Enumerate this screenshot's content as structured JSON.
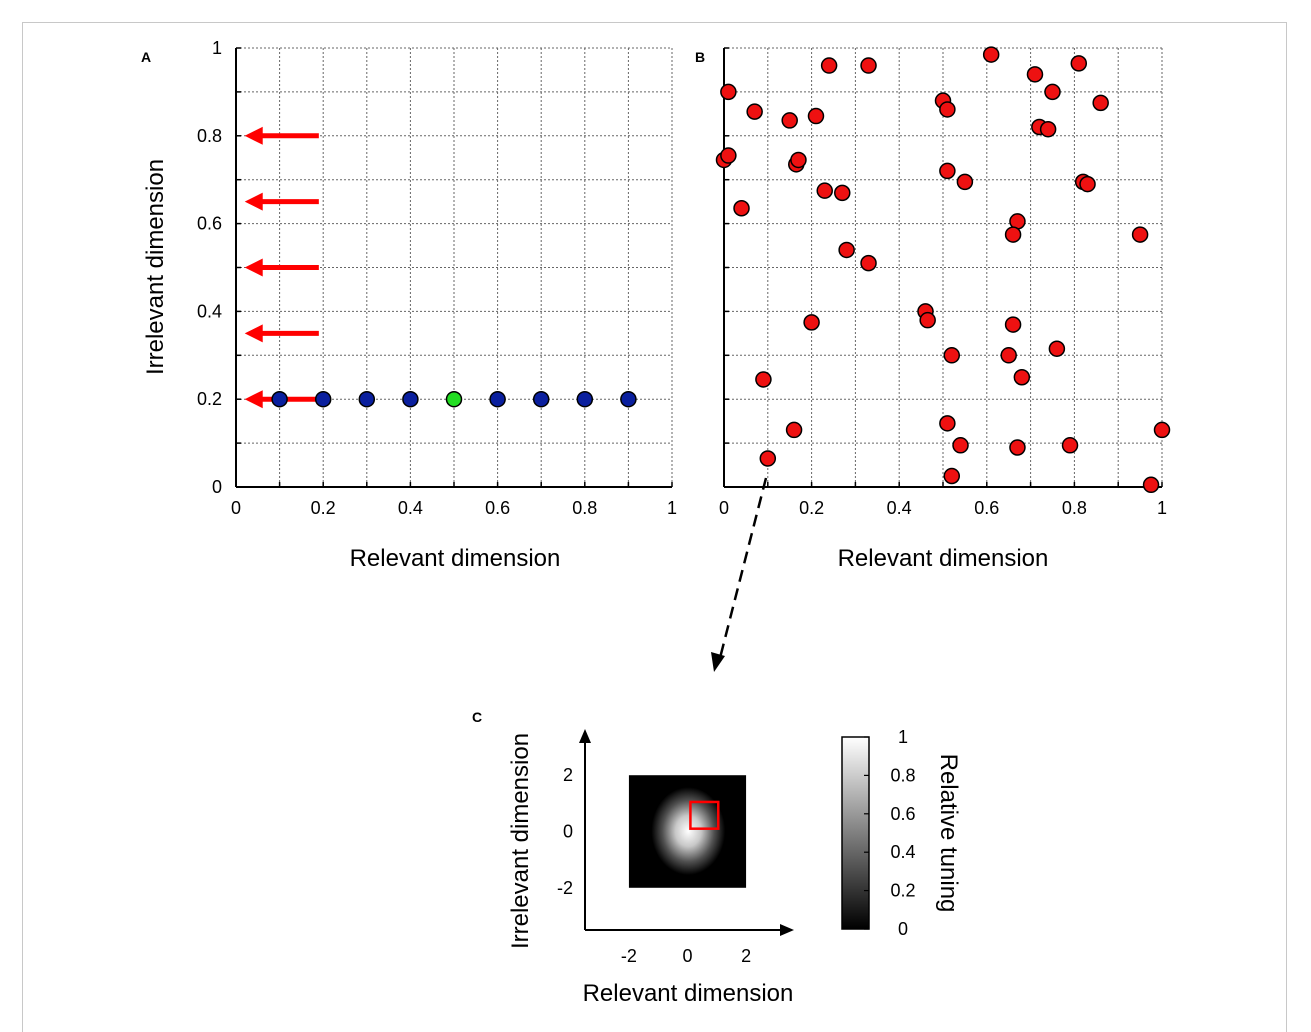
{
  "panels": [
    {
      "id": "A",
      "label": "A"
    },
    {
      "id": "B",
      "label": "B"
    },
    {
      "id": "C",
      "label": "C"
    }
  ],
  "chart_data": [
    {
      "type": "scatter",
      "panel": "A",
      "xlabel": "Relevant dimension",
      "ylabel": "Irrelevant dimension",
      "xlim": [
        0,
        1
      ],
      "ylim": [
        0,
        1
      ],
      "xticks": [
        "0",
        "0.2",
        "0.4",
        "0.6",
        "0.8",
        "1"
      ],
      "yticks": [
        "0",
        "0.2",
        "0.4",
        "0.6",
        "0.8",
        "1"
      ],
      "grid": true,
      "series": [
        {
          "color": "#0a1f9e",
          "points": [
            [
              0.1,
              0.2
            ],
            [
              0.2,
              0.2
            ],
            [
              0.3,
              0.2
            ],
            [
              0.4,
              0.2
            ],
            [
              0.6,
              0.2
            ],
            [
              0.7,
              0.2
            ],
            [
              0.8,
              0.2
            ],
            [
              0.9,
              0.2
            ]
          ]
        },
        {
          "color": "#22dd22",
          "points": [
            [
              0.5,
              0.2
            ]
          ]
        }
      ],
      "arrows": {
        "color": "#ff0000",
        "from_x": 0.19,
        "to_x": 0.02,
        "y": [
          0.8,
          0.65,
          0.5,
          0.35,
          0.2
        ]
      }
    },
    {
      "type": "scatter",
      "panel": "B",
      "xlabel": "Relevant dimension",
      "ylabel": "",
      "xlim": [
        0,
        1
      ],
      "ylim": [
        0,
        1
      ],
      "xticks": [
        "0",
        "0.2",
        "0.4",
        "0.6",
        "0.8",
        "1"
      ],
      "grid": true,
      "series": [
        {
          "color": "#ee1111",
          "points": [
            [
              0.61,
              0.985
            ],
            [
              0.24,
              0.96
            ],
            [
              0.33,
              0.96
            ],
            [
              0.81,
              0.965
            ],
            [
              0.71,
              0.94
            ],
            [
              0.01,
              0.9
            ],
            [
              0.75,
              0.9
            ],
            [
              0.5,
              0.88
            ],
            [
              0.86,
              0.875
            ],
            [
              0.51,
              0.86
            ],
            [
              0.07,
              0.855
            ],
            [
              0.21,
              0.845
            ],
            [
              0.15,
              0.835
            ],
            [
              0.72,
              0.82
            ],
            [
              0.74,
              0.815
            ],
            [
              0.0,
              0.745
            ],
            [
              0.01,
              0.755
            ],
            [
              0.165,
              0.735
            ],
            [
              0.17,
              0.745
            ],
            [
              0.51,
              0.72
            ],
            [
              0.55,
              0.695
            ],
            [
              0.82,
              0.695
            ],
            [
              0.83,
              0.69
            ],
            [
              0.23,
              0.675
            ],
            [
              0.27,
              0.67
            ],
            [
              0.04,
              0.635
            ],
            [
              0.67,
              0.605
            ],
            [
              0.66,
              0.575
            ],
            [
              0.95,
              0.575
            ],
            [
              0.28,
              0.54
            ],
            [
              0.33,
              0.51
            ],
            [
              0.46,
              0.4
            ],
            [
              0.465,
              0.38
            ],
            [
              0.2,
              0.375
            ],
            [
              0.66,
              0.37
            ],
            [
              0.76,
              0.315
            ],
            [
              0.52,
              0.3
            ],
            [
              0.65,
              0.3
            ],
            [
              0.09,
              0.245
            ],
            [
              0.68,
              0.25
            ],
            [
              0.51,
              0.145
            ],
            [
              0.16,
              0.13
            ],
            [
              1.0,
              0.13
            ],
            [
              0.54,
              0.095
            ],
            [
              0.67,
              0.09
            ],
            [
              0.79,
              0.095
            ],
            [
              0.1,
              0.065
            ],
            [
              0.52,
              0.025
            ],
            [
              0.975,
              0.005
            ]
          ]
        }
      ]
    },
    {
      "type": "heatmap",
      "panel": "C",
      "xlabel": "Relevant dimension",
      "ylabel": "Irrelevant dimension",
      "xticks": [
        "-2",
        "0",
        "2"
      ],
      "yticks": [
        "2",
        "0",
        "-2"
      ],
      "xlim": [
        -3.5,
        3.5
      ],
      "ylim": [
        -3.5,
        3.5
      ],
      "extent": [
        -2,
        2,
        -2,
        2
      ],
      "peak": [
        0.3,
        0.3
      ],
      "sigma": 0.6,
      "box": {
        "color": "#ff0000",
        "x": [
          0.1,
          1.05
        ],
        "y": [
          0.1,
          1.05
        ]
      },
      "colorbar": {
        "label": "Relative tuning",
        "ticks": [
          "1",
          "0.8",
          "0.6",
          "0.4",
          "0.2",
          "0"
        ]
      }
    }
  ]
}
